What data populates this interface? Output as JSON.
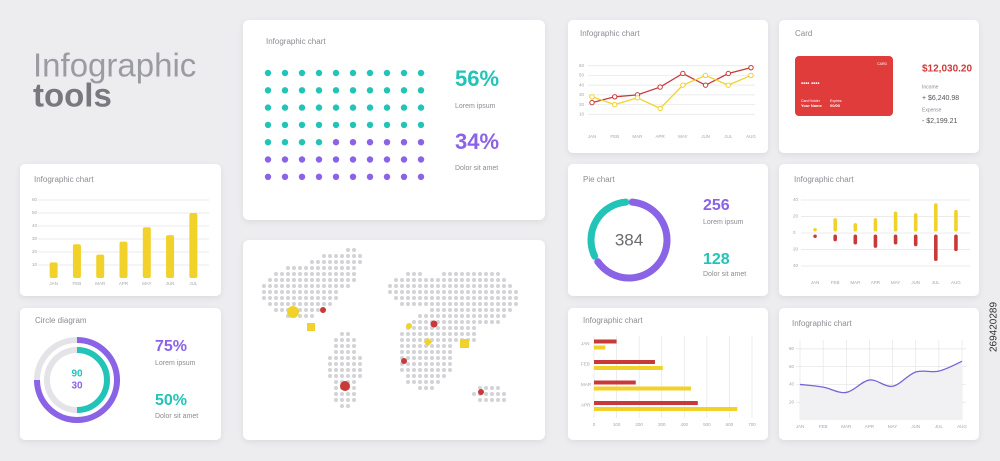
{
  "header": {
    "title": "Infographic",
    "subtitle": "tools"
  },
  "stock_id": "269420289",
  "card": {
    "title": "Card",
    "brand": "CARD",
    "number": "•••• ••••",
    "holder_label": "Card Holder",
    "holder": "Your Name",
    "expires_label": "Expires",
    "expires": "00/00",
    "balance": "$12,030.20",
    "income_label": "Income",
    "income": "+ $6,240.98",
    "expense_label": "Expense",
    "expense": "- $2,199.21"
  },
  "chart_data": [
    {
      "type": "dots",
      "title": "Infographic chart",
      "series": [
        {
          "name": "Lorem ipsum",
          "color": "#22c4b8",
          "values": [
            56
          ],
          "value_labels": [
            "56%"
          ]
        },
        {
          "name": "Dolor sit amet",
          "color": "#8a63e6",
          "values": [
            34
          ],
          "value_labels": [
            "34%"
          ]
        }
      ]
    },
    {
      "type": "line",
      "title": "Infographic chart",
      "categories": [
        "JAN",
        "FEB",
        "MAR",
        "APR",
        "MAY",
        "JUN",
        "JUL",
        "AUG"
      ],
      "ylim": [
        0,
        70
      ],
      "yticks": [
        10,
        20,
        30,
        40,
        50,
        60
      ],
      "grid": true,
      "series": [
        {
          "color": "#c83a3a",
          "values": [
            22,
            28,
            30,
            38,
            52,
            40,
            52,
            58
          ]
        },
        {
          "color": "#f1d22a",
          "values": [
            28,
            20,
            27,
            16,
            40,
            50,
            40,
            50
          ]
        }
      ]
    },
    {
      "type": "bar",
      "title": "Infographic chart",
      "categories": [
        "JAN",
        "FEB",
        "MAR",
        "APR",
        "MAY",
        "JUN",
        "JUL"
      ],
      "values": [
        12,
        26,
        18,
        28,
        39,
        33,
        50
      ],
      "color": "#f1d22a",
      "ylim": [
        0,
        60
      ],
      "yticks": [
        10,
        20,
        30,
        40,
        50,
        60
      ],
      "grid": true
    },
    {
      "type": "radial",
      "title": "Circle diagram",
      "center_values": [
        90,
        30
      ],
      "series": [
        {
          "name": "Lorem ipsum",
          "color": "#8a63e6",
          "values": [
            75
          ],
          "value_labels": [
            "75%"
          ]
        },
        {
          "name": "Dolor sit amet",
          "color": "#22c4b8",
          "values": [
            50
          ],
          "value_labels": [
            "50%"
          ]
        }
      ]
    },
    {
      "type": "donut",
      "title": "Pie chart",
      "total": 384,
      "series": [
        {
          "name": "Lorem ipsum",
          "color": "#8a63e6",
          "values": [
            256
          ]
        },
        {
          "name": "Dolor sit amet",
          "color": "#22c4b8",
          "values": [
            128
          ]
        }
      ]
    },
    {
      "type": "diverging-bar",
      "title": "Infographic chart",
      "categories": [
        "JAN",
        "FEB",
        "MAR",
        "APR",
        "MAY",
        "JUN",
        "JUL",
        "AUG"
      ],
      "ylim": [
        -40,
        40
      ],
      "yticks": [
        {
          "value": -40,
          "label": "40"
        },
        {
          "value": -20,
          "label": "20"
        },
        0,
        20,
        40
      ],
      "grid": true,
      "series": [
        {
          "color": "#f1d22a",
          "values": [
            6,
            18,
            12,
            18,
            26,
            24,
            36,
            28
          ]
        },
        {
          "color": "#c83a3a",
          "values": [
            -6,
            -10,
            -14,
            -18,
            -14,
            -16,
            -34,
            -22
          ]
        }
      ]
    },
    {
      "type": "hbar",
      "title": "Infographic chart",
      "categories": [
        "JAN",
        "FEB",
        "MAR",
        "APR"
      ],
      "xlim": [
        0,
        700
      ],
      "xticks": [
        0,
        100,
        200,
        300,
        400,
        500,
        600,
        700
      ],
      "grid": true,
      "series": [
        {
          "color": "#c83a3a",
          "values": [
            100,
            270,
            185,
            460
          ]
        },
        {
          "color": "#f1d22a",
          "values": [
            50,
            305,
            430,
            635
          ]
        }
      ]
    },
    {
      "type": "area",
      "title": "Infographic chart",
      "categories": [
        "JAN",
        "FEB",
        "MAR",
        "APR",
        "MAY",
        "JUN",
        "JUL",
        "AUG"
      ],
      "values": [
        40,
        37,
        31,
        45,
        38,
        54,
        55,
        66
      ],
      "color": "#7b63d6",
      "ylim": [
        0,
        90
      ],
      "yticks": [
        20,
        40,
        60,
        80
      ],
      "grid": true
    }
  ]
}
